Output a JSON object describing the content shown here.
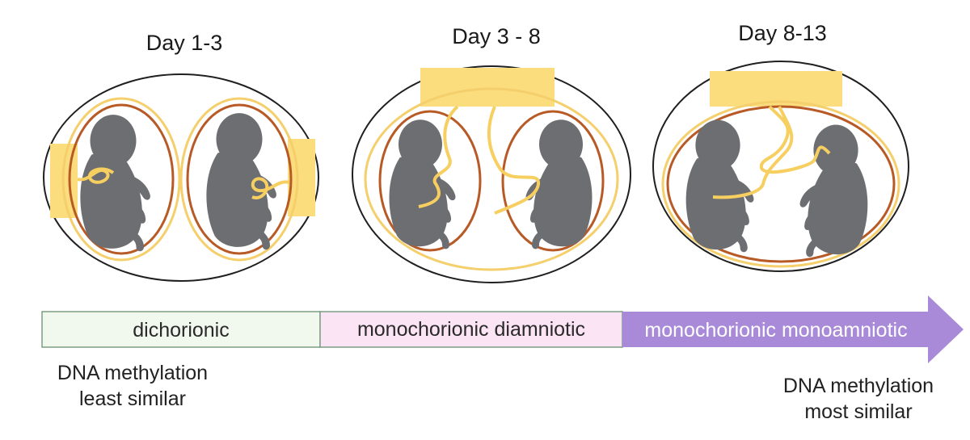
{
  "stages": [
    {
      "label": "Day 1-3"
    },
    {
      "label": "Day 3 - 8"
    },
    {
      "label": "Day 8-13"
    }
  ],
  "timeline": {
    "segments": [
      {
        "label": "dichorionic",
        "fill": "#f1f8ee",
        "text_color": "#2a2a2a"
      },
      {
        "label": "monochorionic diamniotic",
        "fill": "#fbe4f4",
        "text_color": "#2a2a2a"
      },
      {
        "label": "monochorionic monoamniotic",
        "fill": "#a98ad8",
        "text_color": "#ffffff"
      }
    ]
  },
  "notes": {
    "left": [
      "DNA methylation",
      "least similar"
    ],
    "right": [
      "DNA methylation",
      "most similar"
    ]
  },
  "colors": {
    "embryo": "#6d6e71",
    "placenta": "#fbdd7e",
    "cord": "#f6cf60",
    "amnion": "#f4cf6c",
    "chorion": "#b85a26",
    "outline": "#1f1f1f"
  }
}
